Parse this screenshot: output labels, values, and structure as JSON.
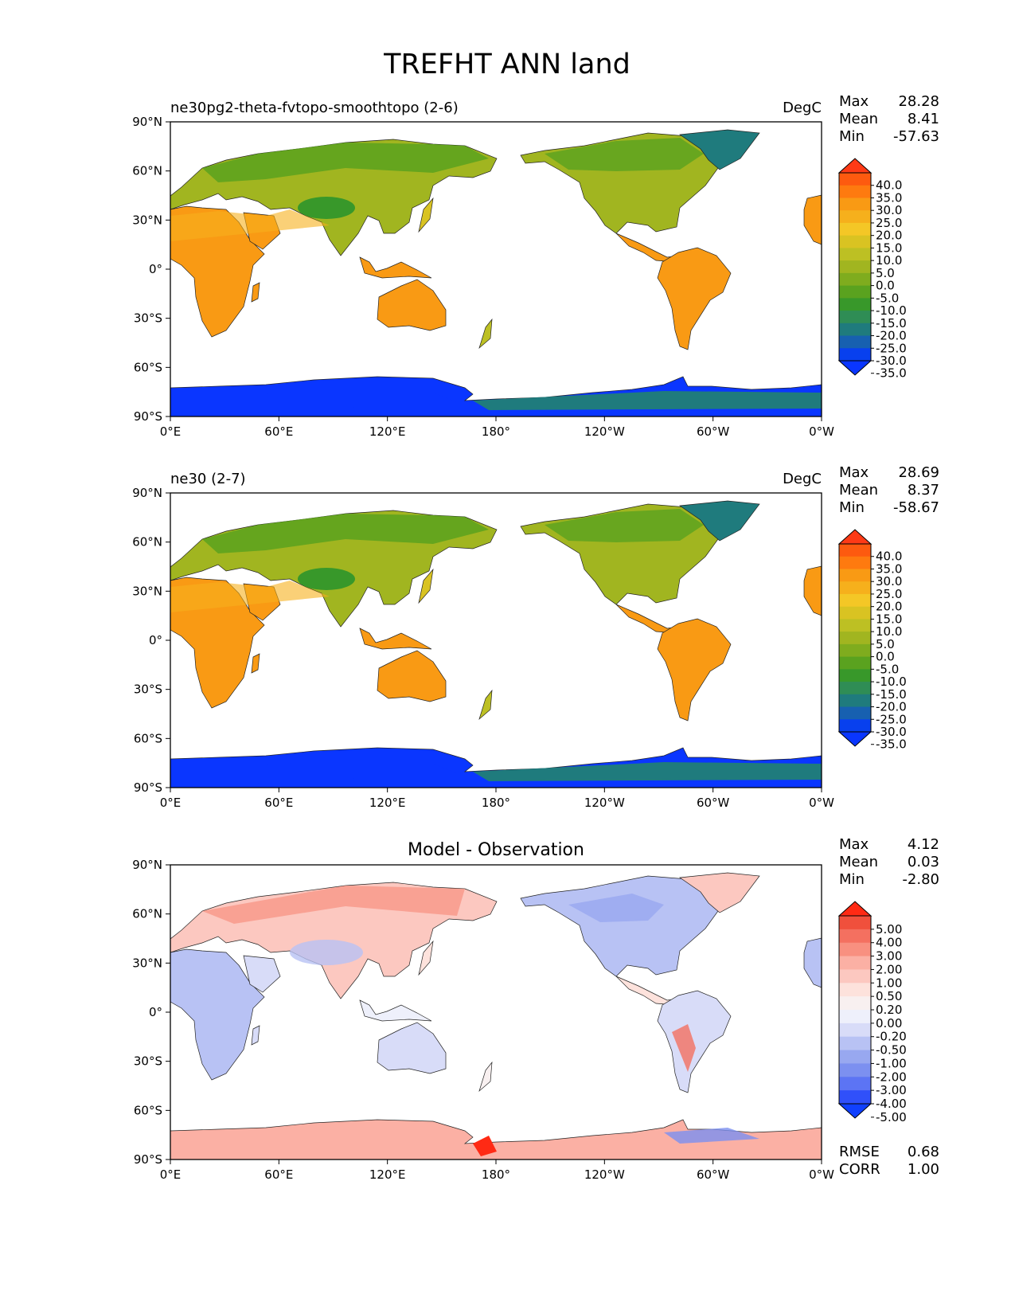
{
  "title": "TREFHT ANN land",
  "lon_ticks": [
    "0°E",
    "60°E",
    "120°E",
    "180°",
    "120°W",
    "60°W",
    "0°W"
  ],
  "lat_ticks": [
    "90°N",
    "60°N",
    "30°N",
    "0°",
    "30°S",
    "60°S",
    "90°S"
  ],
  "panels": [
    {
      "id": "test",
      "left_title": "ne30pg2-theta-fvtopo-smoothtopo (2-6)",
      "center_title": "",
      "units": "DegC",
      "stats": [
        {
          "label": "Max",
          "value": "28.28"
        },
        {
          "label": "Mean",
          "value": "8.41"
        },
        {
          "label": "Min",
          "value": "-57.63"
        }
      ],
      "colorbar_labels": [
        "40.0",
        "35.0",
        "30.0",
        "25.0",
        "20.0",
        "15.0",
        "10.0",
        "5.0",
        "0.0",
        "-5.0",
        "-10.0",
        "-15.0",
        "-20.0",
        "-25.0",
        "-30.0",
        "-35.0"
      ],
      "colors": [
        "#fe3a16",
        "#fd5a0f",
        "#fe7a0f",
        "#f99a14",
        "#f6b01c",
        "#f4c726",
        "#d9c322",
        "#bdc023",
        "#a1b520",
        "#7fac1e",
        "#5aa21f",
        "#38982a",
        "#2f8d55",
        "#1f7b7d",
        "#1760b0",
        "#0840ee",
        "#0a36ff"
      ],
      "extra_stats": []
    },
    {
      "id": "reference",
      "left_title": "ne30 (2-7)",
      "center_title": "",
      "units": "DegC",
      "stats": [
        {
          "label": "Max",
          "value": "28.69"
        },
        {
          "label": "Mean",
          "value": "8.37"
        },
        {
          "label": "Min",
          "value": "-58.67"
        }
      ],
      "colorbar_labels": [
        "40.0",
        "35.0",
        "30.0",
        "25.0",
        "20.0",
        "15.0",
        "10.0",
        "5.0",
        "0.0",
        "-5.0",
        "-10.0",
        "-15.0",
        "-20.0",
        "-25.0",
        "-30.0",
        "-35.0"
      ],
      "colors": [
        "#fe3a16",
        "#fd5a0f",
        "#fe7a0f",
        "#f99a14",
        "#f6b01c",
        "#f4c726",
        "#d9c322",
        "#bdc023",
        "#a1b520",
        "#7fac1e",
        "#5aa21f",
        "#38982a",
        "#2f8d55",
        "#1f7b7d",
        "#1760b0",
        "#0840ee",
        "#0a36ff"
      ],
      "extra_stats": []
    },
    {
      "id": "diff",
      "left_title": "",
      "center_title": "Model - Observation",
      "units": "",
      "stats": [
        {
          "label": "Max",
          "value": "4.12"
        },
        {
          "label": "Mean",
          "value": "0.03"
        },
        {
          "label": "Min",
          "value": "-2.80"
        }
      ],
      "colorbar_labels": [
        "5.00",
        "4.00",
        "3.00",
        "2.00",
        "1.00",
        "0.50",
        "0.20",
        "0.00",
        "-0.20",
        "-0.50",
        "-1.00",
        "-2.00",
        "-3.00",
        "-4.00",
        "-5.00"
      ],
      "colors": [
        "#ff2a14",
        "#f0503c",
        "#f47060",
        "#f89080",
        "#fbb0a4",
        "#fcc8c0",
        "#fde2dc",
        "#f8f0f0",
        "#eef0fb",
        "#d8dcf8",
        "#b8c2f4",
        "#98a8f0",
        "#7c90f0",
        "#5c74f4",
        "#3050fa",
        "#1040ff"
      ],
      "extra_stats": [
        {
          "label": "RMSE",
          "value": "0.68"
        },
        {
          "label": "CORR",
          "value": "1.00"
        }
      ]
    }
  ]
}
